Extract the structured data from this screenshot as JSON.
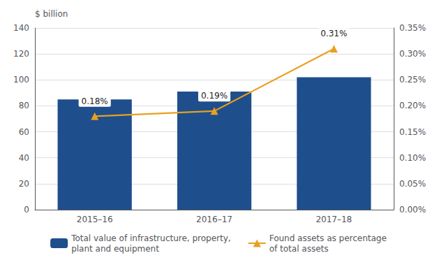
{
  "chart_data": {
    "type": "bar",
    "categories": [
      "2015–16",
      "2016–17",
      "2017–18"
    ],
    "series": [
      {
        "name": "Total value of infrastructure, property,\nplant and equipment",
        "type": "bar",
        "color": "#1F4E8C",
        "values": [
          85,
          91,
          102
        ]
      },
      {
        "name": "Found assets as percentage\nof total assets",
        "type": "line",
        "axis": "y2",
        "color": "#E8A020",
        "marker": "triangle",
        "values": [
          0.18,
          0.19,
          0.31
        ],
        "data_labels": true,
        "value_labels": [
          "0.18%",
          "0.19%",
          "0.31%"
        ]
      }
    ],
    "ylabel": "$ billion",
    "ylim": [
      0,
      140
    ],
    "yticks": [
      0,
      20,
      40,
      60,
      80,
      100,
      120,
      140
    ],
    "y2lim": [
      0,
      0.35
    ],
    "y2ticks": [
      {
        "value": 0.0,
        "label": "0.00%"
      },
      {
        "value": 0.05,
        "label": "0.05%"
      },
      {
        "value": 0.1,
        "label": "0.10%"
      },
      {
        "value": 0.15,
        "label": "0.15%"
      },
      {
        "value": 0.2,
        "label": "0.20%"
      },
      {
        "value": 0.25,
        "label": "0.25%"
      },
      {
        "value": 0.3,
        "label": "0.30%"
      },
      {
        "value": 0.35,
        "label": "0.35%"
      }
    ],
    "grid": true,
    "legend": "bottom"
  }
}
